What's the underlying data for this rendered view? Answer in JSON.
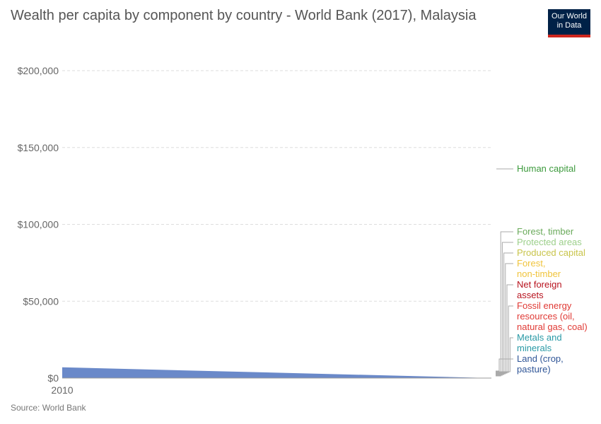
{
  "title": "Wealth per capita by component by country - World Bank (2017), Malaysia",
  "logo": {
    "line1": "Our World",
    "line2": "in Data"
  },
  "source": "Source: World Bank",
  "chart_data": {
    "type": "area",
    "title": "Wealth per capita by component by country - World Bank (2017), Malaysia",
    "xlabel": "",
    "ylabel": "",
    "x_ticks": [
      "2010"
    ],
    "y_ticks": [
      "$0",
      "$50,000",
      "$100,000",
      "$150,000",
      "$200,000"
    ],
    "ylim": [
      0,
      200000
    ],
    "grid": true,
    "legend_placement": "right",
    "filled_area": {
      "start_value": 7000,
      "end_value": 0,
      "color": "#6a89c9"
    },
    "series": [
      {
        "name": "Human capital",
        "label_lines": [
          "Human capital"
        ],
        "value": 135000,
        "color": "#3c9a3c"
      },
      {
        "name": "Forest, timber",
        "label_lines": [
          "Forest, timber"
        ],
        "value": 0,
        "color": "#6aaa5b"
      },
      {
        "name": "Protected areas",
        "label_lines": [
          "Protected areas"
        ],
        "value": 0,
        "color": "#9ccf8a"
      },
      {
        "name": "Produced capital",
        "label_lines": [
          "Produced capital"
        ],
        "value": 0,
        "color": "#c8c44a"
      },
      {
        "name": "Forest, non-timber",
        "label_lines": [
          "Forest,",
          "non-timber"
        ],
        "value": 0,
        "color": "#f0c43c"
      },
      {
        "name": "Net foreign assets",
        "label_lines": [
          "Net foreign",
          "assets"
        ],
        "value": 0,
        "color": "#b8141f"
      },
      {
        "name": "Fossil energy resources (oil, natural gas, coal)",
        "label_lines": [
          "Fossil energy",
          "resources (oil,",
          "natural gas, coal)"
        ],
        "value": 0,
        "color": "#e03a35"
      },
      {
        "name": "Metals and minerals",
        "label_lines": [
          "Metals and",
          "minerals"
        ],
        "value": 0,
        "color": "#2a9aa6"
      },
      {
        "name": "Land (crop, pasture)",
        "label_lines": [
          "Land (crop,",
          "pasture)"
        ],
        "value": 0,
        "color": "#2f5597"
      }
    ]
  }
}
